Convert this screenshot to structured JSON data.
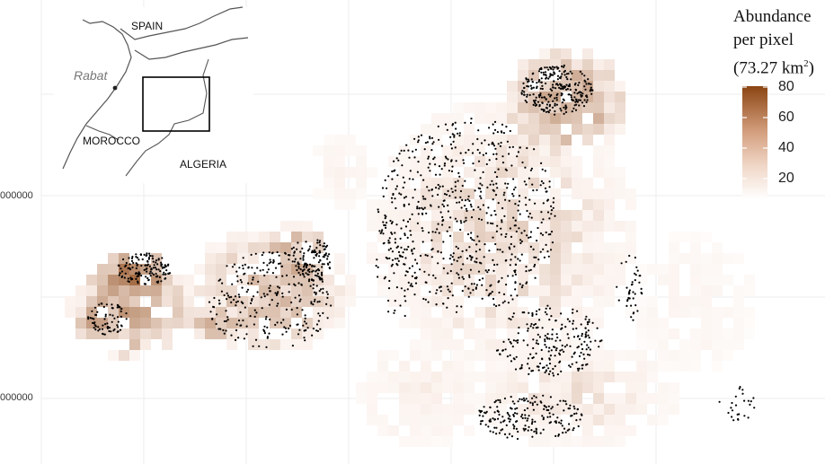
{
  "map": {
    "y_axis_labels": [
      "000000",
      "000000"
    ],
    "colors": {
      "background": "#ffffff",
      "grid": "#ececec",
      "point": "#000000",
      "scale_low": "#fbf1ec",
      "scale_high": "#8b4513"
    }
  },
  "legend": {
    "title_line1": "Abundance",
    "title_line2": "per pixel",
    "title_line3_prefix": "(73.27 km",
    "title_superscript": "2",
    "title_line3_suffix": ")",
    "ticks": [
      "80",
      "60",
      "40",
      "20"
    ],
    "scale_min": 0,
    "scale_max": 85
  },
  "inset": {
    "labels": {
      "spain": "SPAIN",
      "morocco": "MOROCCO",
      "algeria": "ALGERIA",
      "city": "Rabat"
    }
  }
}
